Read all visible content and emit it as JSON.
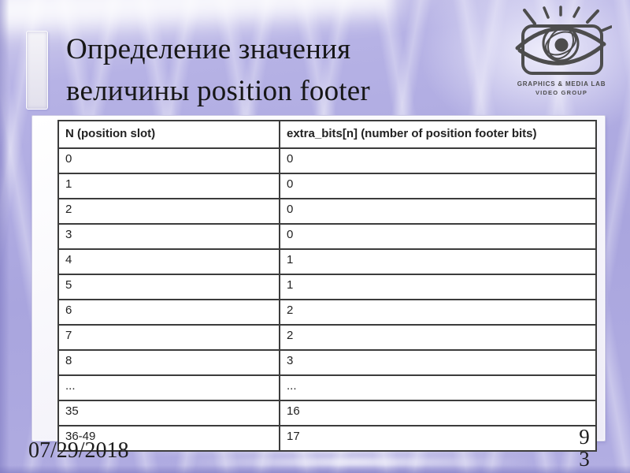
{
  "slide": {
    "title_line1": "Определение значения",
    "title_line2": "величины position footer",
    "date": "07/29/2018",
    "page_number": "93"
  },
  "logo": {
    "icon": "eye-logo-icon",
    "org": "GRAPHICS & MEDIA LAB",
    "group": "VIDEO GROUP"
  },
  "table": {
    "headers": [
      "N (position slot)",
      "extra_bits[n] (number of position footer bits)"
    ],
    "rows": [
      [
        "0",
        "0"
      ],
      [
        "1",
        "0"
      ],
      [
        "2",
        "0"
      ],
      [
        "3",
        "0"
      ],
      [
        "4",
        "1"
      ],
      [
        "5",
        "1"
      ],
      [
        "6",
        "2"
      ],
      [
        "7",
        "2"
      ],
      [
        "8",
        "3"
      ],
      [
        "...",
        "..."
      ],
      [
        "35",
        "16"
      ],
      [
        "36-49",
        "17"
      ]
    ]
  },
  "colors": {
    "bg_base": "#a9a5de",
    "title_color": "#171717",
    "table_border": "#3c3c3c",
    "logo_color": "#4d4d4d"
  }
}
